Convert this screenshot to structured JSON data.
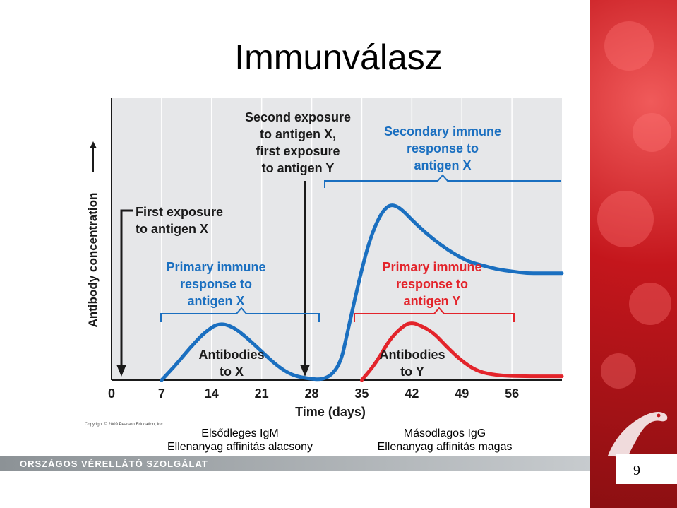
{
  "slide": {
    "title": "Immunválasz",
    "page_number": "9",
    "organization": "ORSZÁGOS VÉRELLÁTÓ SZOLGÁLAT",
    "copyright": "Copyright © 2009 Pearson Education, Inc.",
    "caption_left": [
      "Elsődleges IgM",
      "Ellenanyag affinitás alacsony"
    ],
    "caption_right": [
      "Másodlagos IgG",
      "Ellenanyag affinitás magas"
    ]
  },
  "colors": {
    "blue": "#1a6fc0",
    "red": "#e3242b",
    "chart_bg": "#e6e7e9",
    "text_dark": "#1a1a1a",
    "panel_red": "#c4161c"
  },
  "chart_data": {
    "type": "line",
    "xlabel": "Time (days)",
    "ylabel": "Antibody concentration",
    "x_ticks": [
      0,
      7,
      14,
      21,
      28,
      35,
      42,
      49,
      56
    ],
    "xlim": [
      0,
      63
    ],
    "grid": true,
    "series": [
      {
        "name": "Antibodies to X",
        "color": "#1a6fc0",
        "points": [
          [
            7,
            0
          ],
          [
            9,
            0.08
          ],
          [
            11,
            0.17
          ],
          [
            13,
            0.25
          ],
          [
            15,
            0.3
          ],
          [
            17,
            0.28
          ],
          [
            19,
            0.22
          ],
          [
            21,
            0.15
          ],
          [
            23,
            0.08
          ],
          [
            25,
            0.03
          ],
          [
            27,
            0.01
          ],
          [
            30,
            0.0
          ],
          [
            32,
            0.08
          ],
          [
            33,
            0.25
          ],
          [
            34,
            0.42
          ],
          [
            35,
            0.58
          ],
          [
            36,
            0.72
          ],
          [
            37,
            0.82
          ],
          [
            38,
            0.89
          ],
          [
            39,
            0.92
          ],
          [
            40,
            0.91
          ],
          [
            41,
            0.88
          ],
          [
            42,
            0.84
          ],
          [
            44,
            0.77
          ],
          [
            46,
            0.71
          ],
          [
            48,
            0.66
          ],
          [
            50,
            0.62
          ],
          [
            52,
            0.6
          ],
          [
            54,
            0.58
          ],
          [
            56,
            0.57
          ],
          [
            58,
            0.56
          ],
          [
            60,
            0.56
          ],
          [
            63,
            0.56
          ]
        ]
      },
      {
        "name": "Antibodies to Y",
        "color": "#e3242b",
        "points": [
          [
            35,
            0
          ],
          [
            37,
            0.09
          ],
          [
            39,
            0.22
          ],
          [
            41,
            0.29
          ],
          [
            42,
            0.3
          ],
          [
            43,
            0.29
          ],
          [
            45,
            0.25
          ],
          [
            47,
            0.17
          ],
          [
            49,
            0.1
          ],
          [
            51,
            0.05
          ],
          [
            53,
            0.03
          ],
          [
            56,
            0.02
          ],
          [
            63,
            0.02
          ]
        ]
      }
    ],
    "annotations": [
      {
        "text": [
          "First exposure",
          "to antigen X"
        ]
      },
      {
        "text": [
          "Second exposure",
          "to antigen X,",
          "first exposure",
          "to antigen Y"
        ]
      },
      {
        "text": [
          "Primary immune",
          "response to",
          "antigen X"
        ]
      },
      {
        "text": [
          "Secondary immune",
          "response to",
          "antigen X"
        ]
      },
      {
        "text": [
          "Primary immune",
          "response to",
          "antigen Y"
        ]
      },
      {
        "text": [
          "Antibodies",
          "to X"
        ]
      },
      {
        "text": [
          "Antibodies",
          "to Y"
        ]
      }
    ]
  }
}
